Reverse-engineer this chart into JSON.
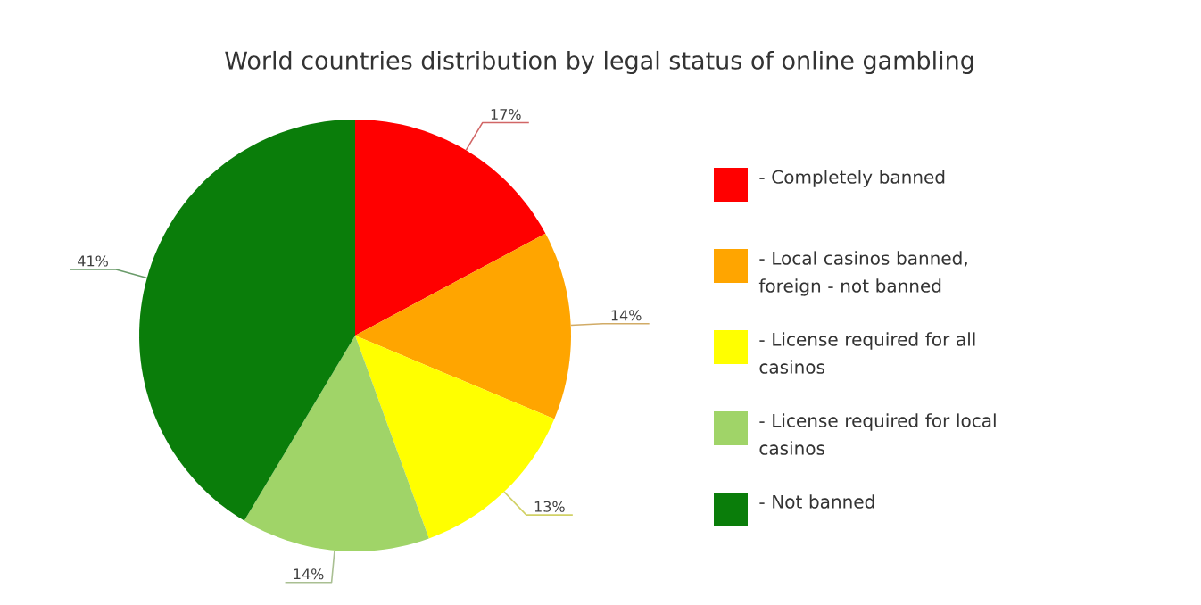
{
  "chart_data": {
    "type": "pie",
    "title": "World countries distribution by legal status of online gambling",
    "categories": [
      "- Completely banned",
      "- Local casinos banned, foreign - not banned",
      "- License required for all casinos",
      "- License required for local casinos",
      "- Not banned"
    ],
    "values": [
      17,
      14,
      13,
      14,
      41
    ],
    "value_labels": [
      "17%",
      "14%",
      "13%",
      "14%",
      "41%"
    ],
    "colors": [
      "#ff0000",
      "#ffa500",
      "#ffff00",
      "#a0d468",
      "#0a7d0a"
    ],
    "legend": "right"
  }
}
